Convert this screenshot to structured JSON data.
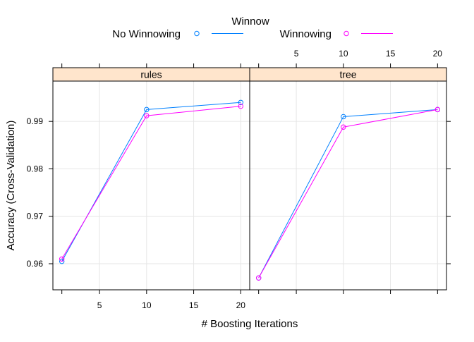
{
  "chart_data": {
    "type": "line",
    "legend": {
      "title": "Winnow",
      "placement": "top"
    },
    "xlabel": "# Boosting Iterations",
    "ylabel": "Accuracy (Cross-Validation)",
    "x_ticks": [
      5,
      10,
      15,
      20
    ],
    "y_ticks": [
      0.96,
      0.97,
      0.98,
      0.99
    ],
    "xlim": [
      0.05,
      20.95
    ],
    "ylim": [
      0.9545,
      0.9985
    ],
    "grid": true,
    "x": [
      1,
      10,
      20
    ],
    "series": [
      {
        "name": "No Winnowing",
        "color": "#0080ff"
      },
      {
        "name": "Winnowing",
        "color": "#ff00ff"
      }
    ],
    "panels": [
      {
        "strip": "rules",
        "values": {
          "No Winnowing": [
            0.9605,
            0.9925,
            0.994
          ],
          "Winnowing": [
            0.961,
            0.9912,
            0.9932
          ]
        }
      },
      {
        "strip": "tree",
        "values": {
          "No Winnowing": [
            0.957,
            0.991,
            0.9925
          ],
          "Winnowing": [
            0.957,
            0.9888,
            0.9925
          ]
        }
      }
    ],
    "colors": {
      "strip_bg": "#ffe5cc",
      "grid": "#e6e6e6",
      "frame": "#000000"
    }
  }
}
